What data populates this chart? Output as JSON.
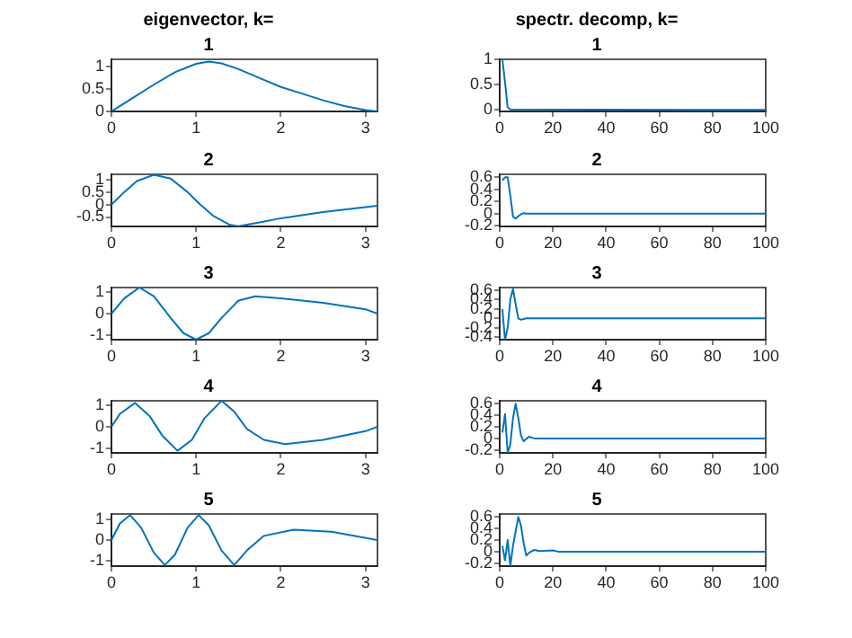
{
  "chart_data": [
    {
      "type": "line",
      "title": "eigenvector, k=",
      "subtitle": "1",
      "grid": false,
      "xlim": [
        0,
        3.1416
      ],
      "xticks": [
        0,
        1,
        2,
        3
      ],
      "ylim": [
        0,
        1.17
      ],
      "yticks": [
        0,
        0.5,
        1
      ],
      "series": [
        {
          "color": "#0072bd",
          "x": [
            0,
            0.25,
            0.5,
            0.75,
            1.0,
            1.15,
            1.3,
            1.5,
            1.75,
            2.0,
            2.25,
            2.5,
            2.75,
            3.0,
            3.1416
          ],
          "values": [
            0,
            0.3,
            0.6,
            0.88,
            1.07,
            1.12,
            1.08,
            0.95,
            0.75,
            0.55,
            0.4,
            0.25,
            0.12,
            0.03,
            0
          ]
        }
      ]
    },
    {
      "type": "line",
      "title": "spectr. decomp, k=",
      "subtitle": "1",
      "grid": false,
      "xlim": [
        0,
        100
      ],
      "xticks": [
        0,
        20,
        40,
        60,
        80,
        100
      ],
      "ylim": [
        -0.03,
        1
      ],
      "yticks": [
        0,
        0.5,
        1
      ],
      "series": [
        {
          "color": "#0072bd",
          "x": [
            1,
            2,
            3,
            4,
            100
          ],
          "values": [
            1,
            0.55,
            0.05,
            0.01,
            0
          ]
        }
      ]
    },
    {
      "type": "line",
      "title": "2",
      "grid": false,
      "xlim": [
        0,
        3.1416
      ],
      "xticks": [
        0,
        1,
        2,
        3
      ],
      "ylim": [
        -0.88,
        1.22
      ],
      "yticks": [
        -0.5,
        0,
        0.5,
        1
      ],
      "series": [
        {
          "color": "#0072bd",
          "x": [
            0,
            0.15,
            0.3,
            0.5,
            0.7,
            0.9,
            1.05,
            1.2,
            1.4,
            1.5,
            1.75,
            2.0,
            2.5,
            3.0,
            3.1416
          ],
          "values": [
            0,
            0.5,
            0.95,
            1.2,
            1.05,
            0.5,
            0,
            -0.45,
            -0.82,
            -0.87,
            -0.72,
            -0.55,
            -0.3,
            -0.1,
            -0.05
          ]
        }
      ]
    },
    {
      "type": "line",
      "title": "2",
      "grid": false,
      "xlim": [
        0,
        100
      ],
      "xticks": [
        0,
        20,
        40,
        60,
        80,
        100
      ],
      "ylim": [
        -0.21,
        0.65
      ],
      "yticks": [
        -0.2,
        0,
        0.2,
        0.4,
        0.6
      ],
      "series": [
        {
          "color": "#0072bd",
          "x": [
            1,
            2,
            3,
            4,
            5,
            6,
            7,
            8,
            9,
            10,
            100
          ],
          "values": [
            0.55,
            0.6,
            0.6,
            0.3,
            -0.05,
            -0.08,
            -0.04,
            -0.01,
            0.01,
            0,
            0
          ]
        }
      ]
    },
    {
      "type": "line",
      "title": "3",
      "grid": false,
      "xlim": [
        0,
        3.1416
      ],
      "xticks": [
        0,
        1,
        2,
        3
      ],
      "ylim": [
        -1.2,
        1.2
      ],
      "yticks": [
        -1,
        0,
        1
      ],
      "series": [
        {
          "color": "#0072bd",
          "x": [
            0,
            0.15,
            0.33,
            0.5,
            0.7,
            0.85,
            1.0,
            1.15,
            1.3,
            1.5,
            1.7,
            2.0,
            2.5,
            3.0,
            3.1416
          ],
          "values": [
            0,
            0.7,
            1.2,
            0.8,
            -0.2,
            -0.9,
            -1.2,
            -0.9,
            -0.2,
            0.6,
            0.8,
            0.7,
            0.5,
            0.2,
            0
          ]
        }
      ]
    },
    {
      "type": "line",
      "title": "3",
      "grid": false,
      "xlim": [
        0,
        100
      ],
      "xticks": [
        0,
        20,
        40,
        60,
        80,
        100
      ],
      "ylim": [
        -0.45,
        0.65
      ],
      "yticks": [
        -0.4,
        -0.2,
        0,
        0.2,
        0.4,
        0.6
      ],
      "series": [
        {
          "color": "#0072bd",
          "x": [
            1,
            2,
            3,
            4,
            5,
            6,
            7,
            8,
            10,
            100
          ],
          "values": [
            0.2,
            -0.45,
            -0.2,
            0.4,
            0.62,
            0.3,
            0,
            -0.03,
            0,
            0
          ]
        }
      ]
    },
    {
      "type": "line",
      "title": "4",
      "grid": false,
      "xlim": [
        0,
        3.1416
      ],
      "xticks": [
        0,
        1,
        2,
        3
      ],
      "ylim": [
        -1.2,
        1.2
      ],
      "yticks": [
        -1,
        0,
        1
      ],
      "series": [
        {
          "color": "#0072bd",
          "x": [
            0,
            0.1,
            0.28,
            0.45,
            0.6,
            0.78,
            0.95,
            1.1,
            1.3,
            1.45,
            1.6,
            1.8,
            2.05,
            2.5,
            3.0,
            3.1416
          ],
          "values": [
            0,
            0.6,
            1.1,
            0.5,
            -0.4,
            -1.1,
            -0.6,
            0.4,
            1.2,
            0.7,
            -0.1,
            -0.6,
            -0.8,
            -0.6,
            -0.2,
            0
          ]
        }
      ]
    },
    {
      "type": "line",
      "title": "4",
      "grid": false,
      "xlim": [
        0,
        100
      ],
      "xticks": [
        0,
        20,
        40,
        60,
        80,
        100
      ],
      "ylim": [
        -0.25,
        0.65
      ],
      "yticks": [
        -0.2,
        0,
        0.2,
        0.4,
        0.6
      ],
      "series": [
        {
          "color": "#0072bd",
          "x": [
            1,
            2,
            3,
            4,
            5,
            6,
            7,
            8,
            9,
            11,
            13,
            100
          ],
          "values": [
            0.1,
            0.42,
            -0.25,
            -0.1,
            0.35,
            0.6,
            0.35,
            0.05,
            -0.05,
            0.03,
            0,
            0
          ]
        }
      ]
    },
    {
      "type": "line",
      "title": "5",
      "grid": false,
      "xlim": [
        0,
        3.1416
      ],
      "xticks": [
        0,
        1,
        2,
        3
      ],
      "ylim": [
        -1.25,
        1.25
      ],
      "yticks": [
        -1,
        0,
        1
      ],
      "series": [
        {
          "color": "#0072bd",
          "x": [
            0,
            0.1,
            0.22,
            0.35,
            0.5,
            0.63,
            0.75,
            0.9,
            1.03,
            1.15,
            1.3,
            1.45,
            1.6,
            1.8,
            2.15,
            2.6,
            3.1416
          ],
          "values": [
            0,
            0.8,
            1.2,
            0.6,
            -0.6,
            -1.2,
            -0.7,
            0.6,
            1.2,
            0.7,
            -0.5,
            -1.2,
            -0.5,
            0.2,
            0.5,
            0.4,
            0
          ]
        }
      ]
    },
    {
      "type": "line",
      "title": "5",
      "grid": false,
      "xlim": [
        0,
        100
      ],
      "xticks": [
        0,
        20,
        40,
        60,
        80,
        100
      ],
      "ylim": [
        -0.25,
        0.65
      ],
      "yticks": [
        -0.2,
        0,
        0.2,
        0.4,
        0.6
      ],
      "series": [
        {
          "color": "#0072bd",
          "x": [
            1,
            2,
            3,
            4,
            5,
            7,
            8,
            9,
            10,
            11,
            13,
            15,
            20,
            22,
            100
          ],
          "values": [
            0.1,
            -0.15,
            0.2,
            -0.25,
            0.1,
            0.6,
            0.45,
            0.15,
            -0.07,
            -0.02,
            0.03,
            0.01,
            0.02,
            0,
            0
          ]
        }
      ]
    }
  ]
}
